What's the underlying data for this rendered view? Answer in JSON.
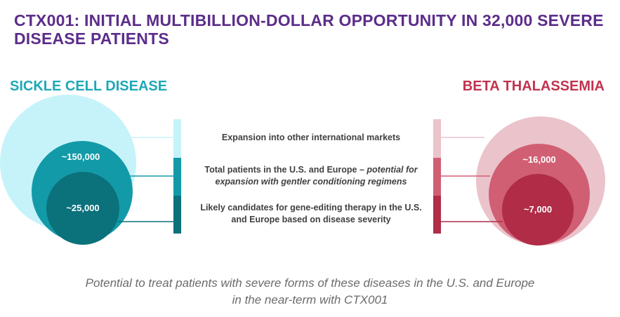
{
  "title": "CTX001: INITIAL MULTIBILLION-DOLLAR OPPORTUNITY IN 32,000 SEVERE DISEASE PATIENTS",
  "sickle_cell": {
    "label": "SICKLE CELL DISEASE",
    "outer_value": "~150,000",
    "inner_value": "~25,000",
    "colors": {
      "outermost": "#c6f3f9",
      "middle": "#139aa8",
      "inner": "#0b717b"
    }
  },
  "beta_thalassemia": {
    "label": "BETA THALASSEMIA",
    "outer_value": "~16,000",
    "inner_value": "~7,000",
    "colors": {
      "outermost": "#ebc3cb",
      "middle": "#d05f74",
      "inner": "#b02c47"
    }
  },
  "descriptions": {
    "row1": "Expansion into other international markets",
    "row2_plain": "Total patients in the U.S. and Europe – ",
    "row2_italic": "potential for expansion with gentler conditioning regimens",
    "row3": "Likely candidates for gene-editing therapy in the U.S. and Europe based on disease severity"
  },
  "footer": {
    "line1": "Potential to treat patients with severe forms of these diseases in the U.S. and Europe",
    "line2": "in the near-term with CTX001"
  }
}
